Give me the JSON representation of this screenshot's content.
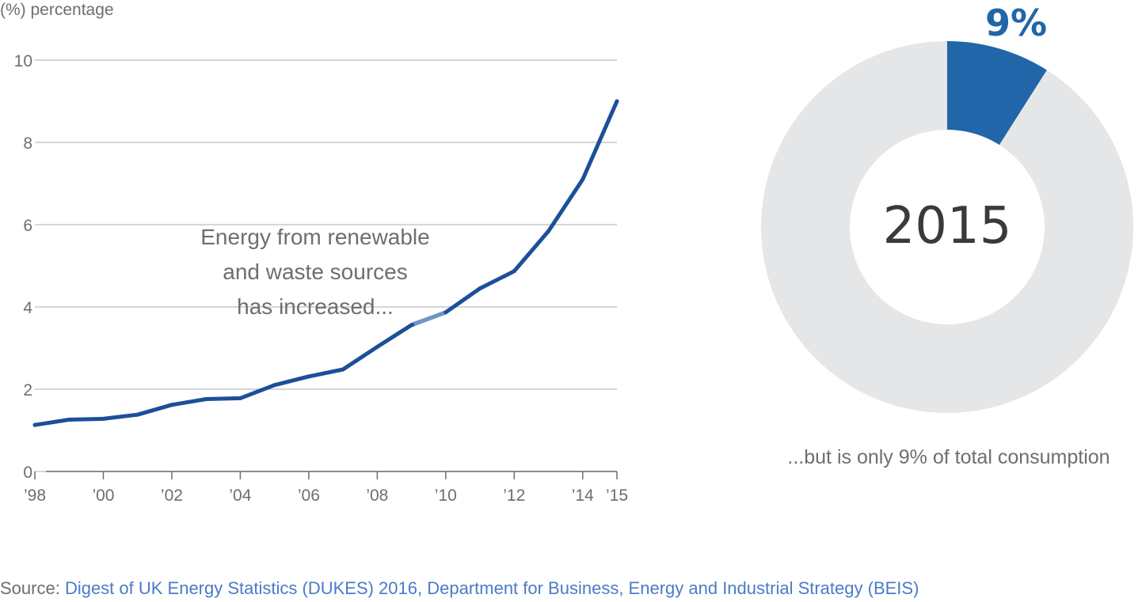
{
  "colors": {
    "line": "#1d4f99",
    "line_highlight": "#6f95c7",
    "grid": "#c8c8c8",
    "axis_text": "#6d6e71",
    "donut_highlight": "#2166a8",
    "donut_rest": "#e5e6e8",
    "donut_center_text": "#3a3a3a",
    "link": "#4a7bc8"
  },
  "chart_data": [
    {
      "type": "line",
      "ylabel": "(%) percentage",
      "ylim": [
        0,
        10
      ],
      "yticks": [
        0,
        2,
        4,
        6,
        8,
        10
      ],
      "xlim": [
        1998,
        2015
      ],
      "xticks": [
        {
          "x": 1998,
          "label": "’98"
        },
        {
          "x": 2000,
          "label": "’00"
        },
        {
          "x": 2002,
          "label": "’02"
        },
        {
          "x": 2004,
          "label": "’04"
        },
        {
          "x": 2006,
          "label": "’06"
        },
        {
          "x": 2008,
          "label": "’08"
        },
        {
          "x": 2010,
          "label": "’10"
        },
        {
          "x": 2012,
          "label": "’12"
        },
        {
          "x": 2014,
          "label": "’14"
        },
        {
          "x": 2015,
          "label": "’15"
        }
      ],
      "grid": true,
      "series": [
        {
          "x": [
            1998,
            1999,
            2000,
            2001,
            2002,
            2003,
            2004,
            2005,
            2006,
            2007,
            2008,
            2009,
            2010,
            2011,
            2012,
            2013,
            2014,
            2015
          ],
          "values": [
            1.13,
            1.26,
            1.28,
            1.38,
            1.62,
            1.76,
            1.78,
            2.1,
            2.31,
            2.48,
            3.03,
            3.56,
            3.87,
            4.45,
            4.87,
            5.84,
            7.1,
            9.0
          ]
        }
      ],
      "annotation": [
        "Energy from renewable",
        "and waste sources",
        "has increased..."
      ]
    },
    {
      "type": "pie",
      "donut": true,
      "highlight_label": "9%",
      "center_label": "2015",
      "slices": [
        {
          "value": 9,
          "color": "#2166a8"
        },
        {
          "value": 91,
          "color": "#e5e6e8"
        }
      ],
      "caption": "...but is only 9% of total consumption"
    }
  ],
  "source": {
    "prefix": "Source: ",
    "text": "Digest of UK Energy Statistics (DUKES) 2016, Department for Business, Energy and Industrial Strategy (BEIS)"
  }
}
